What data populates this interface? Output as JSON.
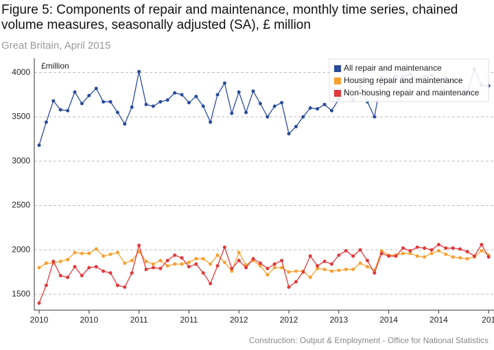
{
  "chart_data": {
    "type": "line",
    "title": "Figure 5: Components of repair and maintenance, monthly time series, chained volume measures, seasonally adjusted (SA), £ million",
    "subtitle": "Great Britain, April 2015",
    "y_label": "£million",
    "source": "Construction: Output & Employment - Office for National Statistics",
    "categories": [
      "2010",
      null,
      null,
      null,
      null,
      null,
      null,
      "2010",
      null,
      null,
      null,
      null,
      null,
      null,
      "2011",
      null,
      null,
      null,
      null,
      null,
      null,
      "2011",
      null,
      null,
      null,
      null,
      null,
      null,
      "2012",
      null,
      null,
      null,
      null,
      null,
      null,
      "2012",
      null,
      null,
      null,
      null,
      null,
      null,
      "2013",
      null,
      null,
      null,
      null,
      null,
      null,
      "2014",
      null,
      null,
      null,
      null,
      null,
      null,
      "2014",
      null,
      null,
      null,
      null,
      null,
      null,
      "201"
    ],
    "series": [
      {
        "name": "All repair and maintenance",
        "color": "#2a4b9b",
        "values": [
          3180,
          3440,
          3680,
          3580,
          3570,
          3780,
          3650,
          3740,
          3820,
          3670,
          3670,
          3550,
          3420,
          3610,
          4010,
          3640,
          3620,
          3670,
          3690,
          3770,
          3750,
          3660,
          3730,
          3620,
          3440,
          3750,
          3880,
          3540,
          3780,
          3550,
          3790,
          3650,
          3500,
          3620,
          3660,
          3310,
          3390,
          3500,
          3600,
          3590,
          3640,
          3570,
          3700,
          3770,
          3690,
          3840,
          3670,
          3500,
          3950,
          3890,
          3960,
          3950,
          3980,
          3920,
          3950,
          3970,
          3920,
          3940,
          3900,
          3910,
          3770,
          4040,
          3860,
          3850
        ]
      },
      {
        "name": "Housing repair and maintenance",
        "color": "#f7a030",
        "values": [
          1800,
          1850,
          1850,
          1870,
          1890,
          1970,
          1960,
          1960,
          2010,
          1930,
          1950,
          1970,
          1850,
          1880,
          1980,
          1870,
          1840,
          1880,
          1820,
          1840,
          1840,
          1860,
          1900,
          1900,
          1840,
          1940,
          1860,
          1760,
          1970,
          1830,
          1880,
          1820,
          1720,
          1800,
          1800,
          1750,
          1760,
          1760,
          1690,
          1790,
          1780,
          1760,
          1770,
          1780,
          1780,
          1850,
          1810,
          1770,
          1990,
          1940,
          1940,
          1960,
          1960,
          1930,
          1920,
          1960,
          1990,
          1950,
          1920,
          1910,
          1900,
          1920,
          1990,
          1940
        ]
      },
      {
        "name": "Non-housing repair and maintenance",
        "color": "#e0393a",
        "values": [
          1400,
          1600,
          1870,
          1710,
          1690,
          1810,
          1710,
          1800,
          1810,
          1760,
          1740,
          1600,
          1580,
          1740,
          2050,
          1780,
          1800,
          1790,
          1880,
          1940,
          1910,
          1810,
          1840,
          1740,
          1620,
          1820,
          2030,
          1790,
          1880,
          1800,
          1900,
          1850,
          1790,
          1840,
          1880,
          1580,
          1640,
          1750,
          1930,
          1820,
          1870,
          1840,
          1940,
          1990,
          1930,
          2000,
          1880,
          1740,
          1960,
          1930,
          1930,
          2020,
          1990,
          2030,
          2020,
          2000,
          2060,
          2020,
          2020,
          2010,
          1980,
          1930,
          2060,
          1920
        ]
      }
    ],
    "ylim": [
      1320,
      4160
    ],
    "yticks": [
      1500,
      2000,
      2500,
      3000,
      3500,
      4000
    ],
    "grid": true,
    "legend": "top-right"
  }
}
